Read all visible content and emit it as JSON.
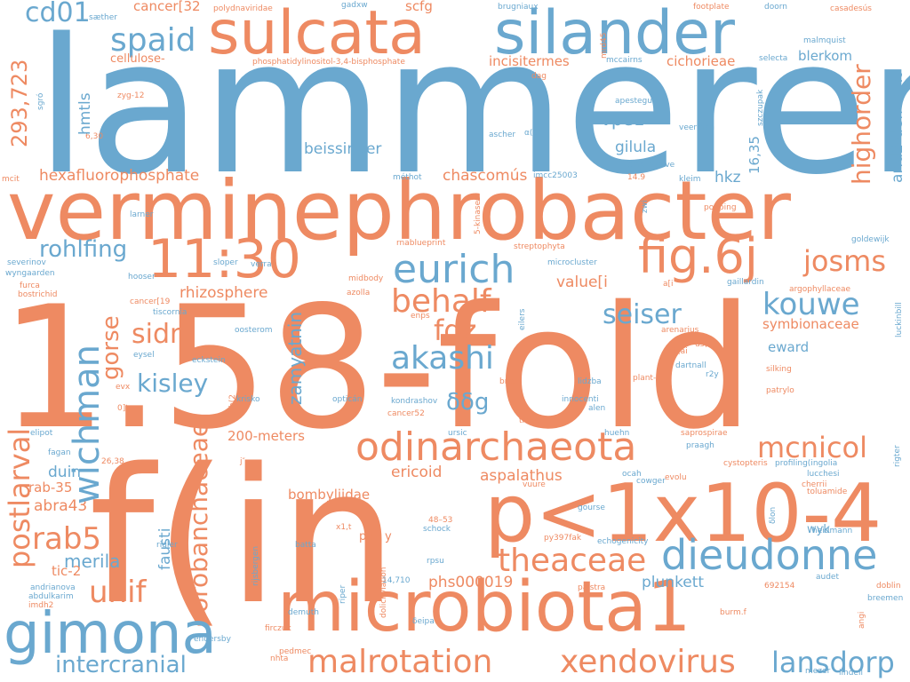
{
  "colors": {
    "blue": "#6aa8cf",
    "orange": "#ee8a62"
  },
  "words": [
    {
      "text": "lammeren",
      "color": "blue"
    },
    {
      "text": "1.58-fold",
      "color": "orange"
    },
    {
      "text": "f(in",
      "color": "orange"
    },
    {
      "text": "verminephrobacter",
      "color": "orange"
    },
    {
      "text": "microbiota1",
      "color": "orange"
    },
    {
      "text": "p<1x10-4",
      "color": "orange"
    },
    {
      "text": "sulcata",
      "color": "orange"
    },
    {
      "text": "silander",
      "color": "blue"
    },
    {
      "text": "gimona",
      "color": "blue"
    },
    {
      "text": "odinarchaeota",
      "color": "orange"
    },
    {
      "text": "11:30",
      "color": "orange"
    },
    {
      "text": "fig.6j",
      "color": "orange"
    },
    {
      "text": "eurich",
      "color": "blue"
    },
    {
      "text": "dieudonne",
      "color": "blue"
    },
    {
      "text": "theaceae",
      "color": "orange"
    },
    {
      "text": "malrotation",
      "color": "orange"
    },
    {
      "text": "xendovirus",
      "color": "orange"
    },
    {
      "text": "spaid",
      "color": "blue"
    },
    {
      "text": "cd01",
      "color": "blue"
    },
    {
      "text": "akashi",
      "color": "blue"
    },
    {
      "text": "behalf",
      "color": "orange"
    },
    {
      "text": "seiser",
      "color": "blue"
    },
    {
      "text": "kouwe",
      "color": "blue"
    },
    {
      "text": "josms",
      "color": "orange"
    },
    {
      "text": "mcnicol",
      "color": "orange"
    },
    {
      "text": "lansdorp",
      "color": "blue"
    },
    {
      "text": "intercranial",
      "color": "blue"
    },
    {
      "text": "unif",
      "color": "orange"
    },
    {
      "text": "rab5",
      "color": "orange"
    },
    {
      "text": "rohlfing",
      "color": "blue"
    },
    {
      "text": "sidm",
      "color": "orange"
    },
    {
      "text": "fdz",
      "color": "orange"
    },
    {
      "text": "kisley",
      "color": "blue"
    },
    {
      "text": "δδg",
      "color": "blue"
    },
    {
      "text": "merila",
      "color": "blue"
    },
    {
      "text": "hexafluorophosphate",
      "color": "orange"
    },
    {
      "text": "beissinger",
      "color": "blue"
    },
    {
      "text": "chascomús",
      "color": "orange"
    },
    {
      "text": "ericoid",
      "color": "orange"
    },
    {
      "text": "aspalathus",
      "color": "orange"
    },
    {
      "text": "phs000019",
      "color": "orange"
    },
    {
      "text": "plunkett",
      "color": "blue"
    },
    {
      "text": "θ(h(2",
      "color": "orange"
    },
    {
      "text": "vpe1",
      "color": "blue"
    },
    {
      "text": "gilula",
      "color": "blue"
    },
    {
      "text": "hkz",
      "color": "blue"
    },
    {
      "text": "blerkom",
      "color": "blue"
    },
    {
      "text": "symbionaceae",
      "color": "orange"
    },
    {
      "text": "eward",
      "color": "blue"
    },
    {
      "text": "value[i",
      "color": "orange"
    },
    {
      "text": "rhizosphere",
      "color": "orange"
    },
    {
      "text": "200-meters",
      "color": "orange"
    },
    {
      "text": "duin",
      "color": "blue"
    },
    {
      "text": "rab-35",
      "color": "orange"
    },
    {
      "text": "abra43",
      "color": "orange"
    },
    {
      "text": "tic-2",
      "color": "orange"
    },
    {
      "text": "bombyliidae",
      "color": "orange"
    },
    {
      "text": "incisitermes",
      "color": "orange"
    },
    {
      "text": "cichorieae",
      "color": "orange"
    },
    {
      "text": "scfg",
      "color": "orange"
    },
    {
      "text": "cancer[32",
      "color": "orange"
    },
    {
      "text": "cellulose-",
      "color": "orange"
    },
    {
      "text": "wyk",
      "color": "blue"
    },
    {
      "text": "postlarval",
      "color": "orange"
    },
    {
      "text": "wichman",
      "color": "blue"
    },
    {
      "text": "gorse",
      "color": "orange"
    },
    {
      "text": "orobanchaceae",
      "color": "orange"
    },
    {
      "text": "zamyatnin",
      "color": "blue"
    },
    {
      "text": "293,723",
      "color": "orange"
    },
    {
      "text": "hmtls",
      "color": "blue"
    },
    {
      "text": "highorder",
      "color": "orange"
    },
    {
      "text": "arid2-deficient",
      "color": "blue"
    },
    {
      "text": "16,35",
      "color": "blue"
    },
    {
      "text": "fausti",
      "color": "blue"
    },
    {
      "text": "szczupak",
      "color": "blue"
    },
    {
      "text": "5-kinases",
      "color": "orange"
    },
    {
      "text": "mrd45",
      "color": "orange"
    },
    {
      "text": "polydnaviridae",
      "color": "orange"
    },
    {
      "text": "phosphatidylinositol-3,4-bisphosphate",
      "color": "orange"
    },
    {
      "text": "gadxw",
      "color": "blue"
    },
    {
      "text": "brugniaux",
      "color": "blue"
    },
    {
      "text": "footplate",
      "color": "orange"
    },
    {
      "text": "doorn",
      "color": "blue"
    },
    {
      "text": "casadesús",
      "color": "orange"
    },
    {
      "text": "malmquist",
      "color": "blue"
    },
    {
      "text": "selecta",
      "color": "blue"
    },
    {
      "text": "mccairns",
      "color": "blue"
    },
    {
      "text": "sæther",
      "color": "blue"
    },
    {
      "text": "zyg-12",
      "color": "orange"
    },
    {
      "text": "dag",
      "color": "orange"
    },
    {
      "text": "apesteguía",
      "color": "blue"
    },
    {
      "text": "veerman",
      "color": "blue"
    },
    {
      "text": "ascher",
      "color": "blue"
    },
    {
      "text": "α(sr",
      "color": "blue"
    },
    {
      "text": "6,30",
      "color": "orange"
    },
    {
      "text": "sgró",
      "color": "blue"
    },
    {
      "text": "dm0-evolve",
      "color": "blue"
    },
    {
      "text": "mcit",
      "color": "orange"
    },
    {
      "text": "méthot",
      "color": "blue"
    },
    {
      "text": "imcc25003",
      "color": "blue"
    },
    {
      "text": "14.9",
      "color": "orange"
    },
    {
      "text": "kleim",
      "color": "blue"
    },
    {
      "text": "zwi",
      "color": "blue"
    },
    {
      "text": "larner",
      "color": "blue"
    },
    {
      "text": "popping",
      "color": "orange"
    },
    {
      "text": "rnablueprint",
      "color": "orange"
    },
    {
      "text": "streptophyta",
      "color": "orange"
    },
    {
      "text": "goldewijk",
      "color": "blue"
    },
    {
      "text": "severinov",
      "color": "blue"
    },
    {
      "text": "wyngaarden",
      "color": "blue"
    },
    {
      "text": "sloper",
      "color": "blue"
    },
    {
      "text": "verra",
      "color": "blue"
    },
    {
      "text": "microcluster",
      "color": "blue"
    },
    {
      "text": "furca",
      "color": "orange"
    },
    {
      "text": "bostrichid",
      "color": "orange"
    },
    {
      "text": "hooser",
      "color": "blue"
    },
    {
      "text": "midbody",
      "color": "orange"
    },
    {
      "text": "azolla",
      "color": "orange"
    },
    {
      "text": "a[i",
      "color": "orange"
    },
    {
      "text": "gaillardin",
      "color": "blue"
    },
    {
      "text": "argophyllaceae",
      "color": "orange"
    },
    {
      "text": "luckinbill",
      "color": "blue"
    },
    {
      "text": "cancer[19",
      "color": "orange"
    },
    {
      "text": "tiscornia",
      "color": "blue"
    },
    {
      "text": "enps",
      "color": "orange"
    },
    {
      "text": "eilers",
      "color": "blue"
    },
    {
      "text": "oosterom",
      "color": "blue"
    },
    {
      "text": "arenarius",
      "color": "orange"
    },
    {
      "text": "us(t",
      "color": "orange"
    },
    {
      "text": "fij(ai",
      "color": "orange"
    },
    {
      "text": "eysel",
      "color": "blue"
    },
    {
      "text": "eckstein",
      "color": "blue"
    },
    {
      "text": "dartnall",
      "color": "blue"
    },
    {
      "text": "r2y",
      "color": "blue"
    },
    {
      "text": "silking",
      "color": "orange"
    },
    {
      "text": "patrylo",
      "color": "orange"
    },
    {
      "text": "evx",
      "color": "orange"
    },
    {
      "text": "krisko",
      "color": "blue"
    },
    {
      "text": "brst",
      "color": "orange"
    },
    {
      "text": "lidzba",
      "color": "blue"
    },
    {
      "text": "plant-1",
      "color": "orange"
    },
    {
      "text": "0]t",
      "color": "orange"
    },
    {
      "text": "kondrashov",
      "color": "blue"
    },
    {
      "text": "innocenti",
      "color": "blue"
    },
    {
      "text": "alen",
      "color": "blue"
    },
    {
      "text": "opticán",
      "color": "blue"
    },
    {
      "text": "cancer52",
      "color": "orange"
    },
    {
      "text": "t|",
      "color": "orange"
    },
    {
      "text": "tmks",
      "color": "orange"
    },
    {
      "text": "elipot",
      "color": "blue"
    },
    {
      "text": "ursic",
      "color": "blue"
    },
    {
      "text": "huehn",
      "color": "blue"
    },
    {
      "text": "saprospirae",
      "color": "orange"
    },
    {
      "text": "praagh",
      "color": "blue"
    },
    {
      "text": "profiling(ingolia",
      "color": "blue"
    },
    {
      "text": "rigter",
      "color": "blue"
    },
    {
      "text": "fagan",
      "color": "blue"
    },
    {
      "text": "26,38",
      "color": "orange"
    },
    {
      "text": "j″",
      "color": "orange"
    },
    {
      "text": "cystopteris",
      "color": "orange"
    },
    {
      "text": "lucchesi",
      "color": "blue"
    },
    {
      "text": "ocah",
      "color": "blue"
    },
    {
      "text": "cowger",
      "color": "blue"
    },
    {
      "text": "evolu",
      "color": "orange"
    },
    {
      "text": "vuure",
      "color": "orange"
    },
    {
      "text": "cherrii",
      "color": "orange"
    },
    {
      "text": "toluamide",
      "color": "orange"
    },
    {
      "text": "δlon",
      "color": "blue"
    },
    {
      "text": "gourse",
      "color": "blue"
    },
    {
      "text": "rijsbergen",
      "color": "blue"
    },
    {
      "text": "x1,t",
      "color": "orange"
    },
    {
      "text": "48–53",
      "color": "orange"
    },
    {
      "text": "schock",
      "color": "blue"
    },
    {
      "text": "rigler",
      "color": "blue"
    },
    {
      "text": "batta",
      "color": "blue"
    },
    {
      "text": "px・y",
      "color": "orange"
    },
    {
      "text": "py397fak",
      "color": "orange"
    },
    {
      "text": "echogenicity",
      "color": "blue"
    },
    {
      "text": "heidmann",
      "color": "blue"
    },
    {
      "text": "rpsu",
      "color": "blue"
    },
    {
      "text": "andrianova",
      "color": "blue"
    },
    {
      "text": "abdulkarim",
      "color": "blue"
    },
    {
      "text": "dolichylation",
      "color": "orange"
    },
    {
      "text": "riper",
      "color": "blue"
    },
    {
      "text": "14,710",
      "color": "blue"
    },
    {
      "text": "palstra",
      "color": "orange"
    },
    {
      "text": "audet",
      "color": "blue"
    },
    {
      "text": "doblin",
      "color": "orange"
    },
    {
      "text": "692154",
      "color": "orange"
    },
    {
      "text": "breemen",
      "color": "blue"
    },
    {
      "text": "imdh2",
      "color": "orange"
    },
    {
      "text": "demuth",
      "color": "blue"
    },
    {
      "text": "firczuk",
      "color": "orange"
    },
    {
      "text": "δeipa",
      "color": "blue"
    },
    {
      "text": "burm.f",
      "color": "orange"
    },
    {
      "text": "angi",
      "color": "orange"
    },
    {
      "text": "pedmec",
      "color": "orange"
    },
    {
      "text": "endersby",
      "color": "blue"
    },
    {
      "text": "nhta",
      "color": "orange"
    },
    {
      "text": "mezer",
      "color": "blue"
    },
    {
      "text": "lindell",
      "color": "blue"
    }
  ]
}
